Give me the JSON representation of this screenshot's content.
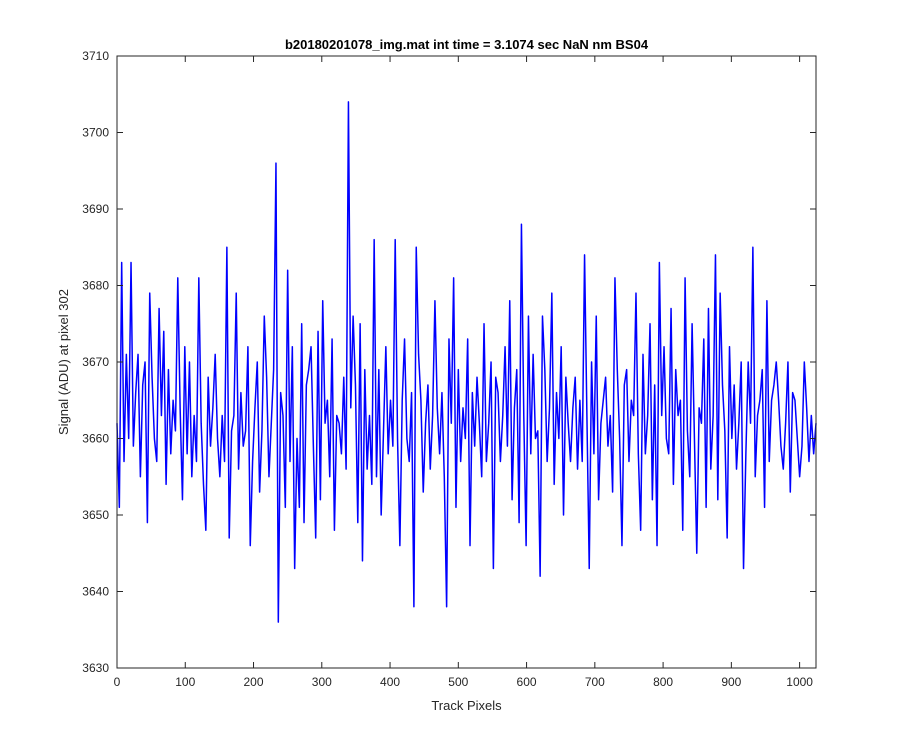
{
  "chart_data": {
    "type": "line",
    "title": "b20180201078_img.mat int time = 3.1074 sec  NaN nm BS04",
    "xlabel": "Track Pixels",
    "ylabel": "Signal (ADU) at pixel 302",
    "xlim": [
      0,
      1024
    ],
    "ylim": [
      3630,
      3710
    ],
    "xticks": [
      0,
      100,
      200,
      300,
      400,
      500,
      600,
      700,
      800,
      900,
      1000
    ],
    "yticks": [
      3630,
      3640,
      3650,
      3660,
      3670,
      3680,
      3690,
      3700,
      3710
    ],
    "grid": false,
    "series": [
      {
        "color": "#0000ff",
        "values": [
          3662,
          3651,
          3683,
          3657,
          3671,
          3660,
          3683,
          3659,
          3666,
          3671,
          3655,
          3667,
          3670,
          3649,
          3679,
          3668,
          3660,
          3657,
          3677,
          3663,
          3674,
          3654,
          3669,
          3658,
          3665,
          3661,
          3681,
          3664,
          3652,
          3672,
          3658,
          3670,
          3655,
          3663,
          3657,
          3681,
          3662,
          3654,
          3648,
          3668,
          3659,
          3664,
          3671,
          3660,
          3655,
          3663,
          3657,
          3685,
          3647,
          3661,
          3663,
          3679,
          3656,
          3666,
          3659,
          3661,
          3672,
          3646,
          3657,
          3664,
          3670,
          3653,
          3661,
          3676,
          3668,
          3655,
          3662,
          3669,
          3696,
          3636,
          3666,
          3663,
          3651,
          3682,
          3657,
          3672,
          3643,
          3660,
          3651,
          3675,
          3649,
          3667,
          3669,
          3672,
          3659,
          3647,
          3674,
          3652,
          3678,
          3662,
          3665,
          3655,
          3673,
          3648,
          3663,
          3662,
          3658,
          3668,
          3656,
          3704,
          3664,
          3676,
          3667,
          3649,
          3675,
          3644,
          3669,
          3656,
          3663,
          3654,
          3686,
          3655,
          3669,
          3650,
          3661,
          3672,
          3658,
          3665,
          3659,
          3686,
          3660,
          3646,
          3665,
          3673,
          3660,
          3657,
          3666,
          3638,
          3685,
          3671,
          3665,
          3653,
          3662,
          3667,
          3656,
          3663,
          3678,
          3664,
          3658,
          3666,
          3655,
          3638,
          3673,
          3662,
          3681,
          3651,
          3669,
          3657,
          3664,
          3660,
          3673,
          3646,
          3666,
          3659,
          3668,
          3662,
          3655,
          3675,
          3657,
          3662,
          3670,
          3643,
          3668,
          3666,
          3657,
          3663,
          3672,
          3659,
          3678,
          3652,
          3664,
          3669,
          3649,
          3688,
          3663,
          3646,
          3676,
          3658,
          3671,
          3660,
          3661,
          3642,
          3676,
          3669,
          3657,
          3664,
          3679,
          3654,
          3666,
          3660,
          3672,
          3650,
          3668,
          3662,
          3657,
          3664,
          3668,
          3656,
          3665,
          3657,
          3684,
          3663,
          3643,
          3670,
          3658,
          3676,
          3652,
          3662,
          3665,
          3668,
          3659,
          3663,
          3653,
          3681,
          3669,
          3660,
          3646,
          3667,
          3669,
          3657,
          3665,
          3663,
          3679,
          3658,
          3648,
          3671,
          3658,
          3663,
          3675,
          3652,
          3667,
          3646,
          3683,
          3663,
          3672,
          3660,
          3658,
          3677,
          3654,
          3669,
          3663,
          3665,
          3648,
          3681,
          3661,
          3655,
          3675,
          3660,
          3645,
          3664,
          3662,
          3673,
          3651,
          3677,
          3656,
          3663,
          3684,
          3652,
          3679,
          3667,
          3661,
          3647,
          3672,
          3660,
          3667,
          3656,
          3662,
          3670,
          3643,
          3658,
          3670,
          3662,
          3685,
          3655,
          3663,
          3665,
          3669,
          3651,
          3678,
          3657,
          3665,
          3667,
          3670,
          3665,
          3659,
          3656,
          3662,
          3670,
          3653,
          3666,
          3665,
          3660,
          3655,
          3659,
          3670,
          3664,
          3657,
          3663,
          3658,
          3662
        ]
      }
    ]
  }
}
